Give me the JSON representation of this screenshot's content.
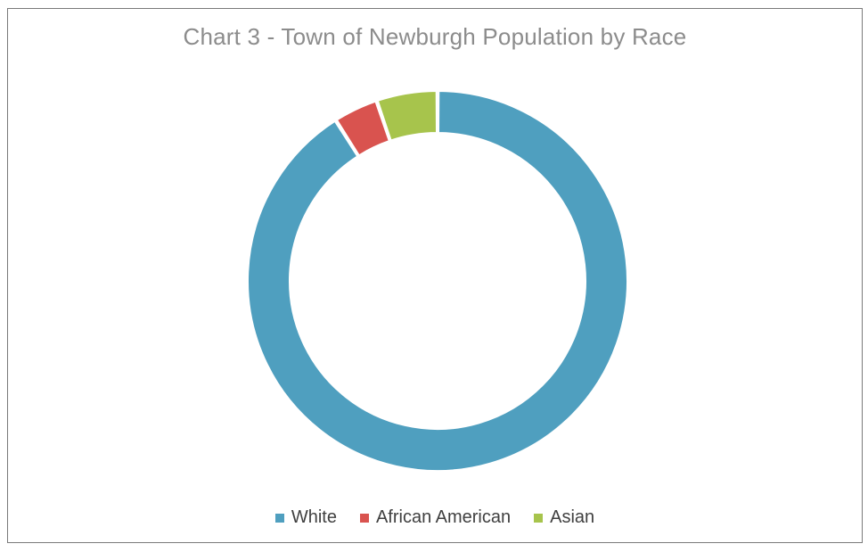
{
  "chart_data": {
    "type": "pie",
    "variant": "donut",
    "title": "Chart 3 - Town of Newburgh Population by Race",
    "categories": [
      "White",
      "African American",
      "Asian"
    ],
    "values": [
      91.0,
      3.8,
      5.2
    ],
    "colors": [
      "#4f9fbf",
      "#d9534f",
      "#a7c44c"
    ],
    "legend_position": "bottom"
  }
}
